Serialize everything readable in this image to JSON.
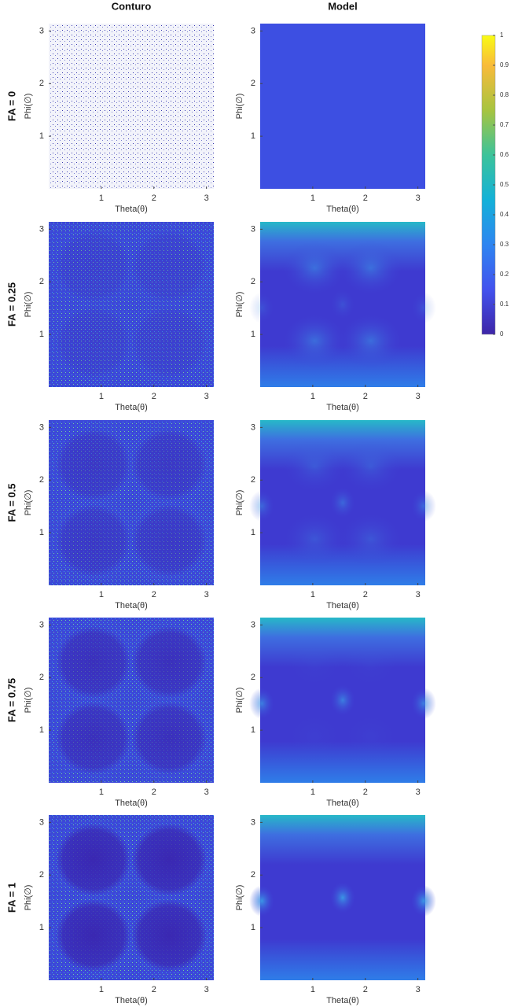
{
  "figure": {
    "columns": [
      "Conturo",
      "Model"
    ],
    "rows": [
      "FA = 0",
      "FA = 0.25",
      "FA = 0.5",
      "FA = 0.75",
      "FA = 1"
    ],
    "xlabel": "Theta(θ)",
    "ylabel": "Phi(∅)",
    "xlim": [
      0,
      3.14
    ],
    "ylim": [
      0,
      3.14
    ],
    "xticks": [
      1,
      2,
      3
    ],
    "yticks": [
      1,
      2,
      3
    ],
    "colorbar": {
      "lim": [
        0,
        1
      ],
      "ticks": [
        0,
        0.1,
        0.2,
        0.3,
        0.4,
        0.5,
        0.6,
        0.7,
        0.8,
        0.9,
        1
      ]
    }
  }
}
